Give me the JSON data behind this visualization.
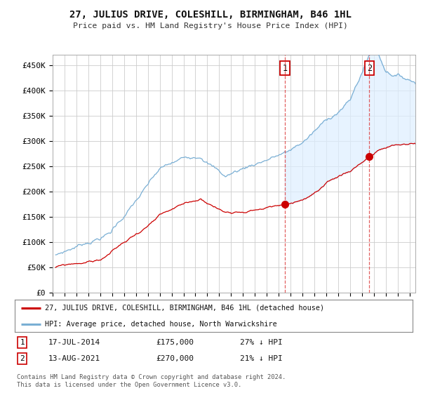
{
  "title": "27, JULIUS DRIVE, COLESHILL, BIRMINGHAM, B46 1HL",
  "subtitle": "Price paid vs. HM Land Registry's House Price Index (HPI)",
  "background_color": "#ffffff",
  "plot_bg_color": "#ffffff",
  "grid_color": "#cccccc",
  "hpi_color": "#7aafd4",
  "hpi_fill_color": "#ddeeff",
  "price_color": "#cc0000",
  "ylim": [
    0,
    470000
  ],
  "yticks": [
    0,
    50000,
    100000,
    150000,
    200000,
    250000,
    300000,
    350000,
    400000,
    450000
  ],
  "ytick_labels": [
    "£0",
    "£50K",
    "£100K",
    "£150K",
    "£200K",
    "£250K",
    "£300K",
    "£350K",
    "£400K",
    "£450K"
  ],
  "sale1_date": "17-JUL-2014",
  "sale1_price": 175000,
  "sale1_hpi_pct": "27% ↓ HPI",
  "sale1_year": 2014.54,
  "sale2_date": "13-AUG-2021",
  "sale2_price": 270000,
  "sale2_hpi_pct": "21% ↓ HPI",
  "sale2_year": 2021.62,
  "legend_line1": "27, JULIUS DRIVE, COLESHILL, BIRMINGHAM, B46 1HL (detached house)",
  "legend_line2": "HPI: Average price, detached house, North Warwickshire",
  "footnote": "Contains HM Land Registry data © Crown copyright and database right 2024.\nThis data is licensed under the Open Government Licence v3.0.",
  "xstart": 1995.25,
  "xend": 2025.5
}
